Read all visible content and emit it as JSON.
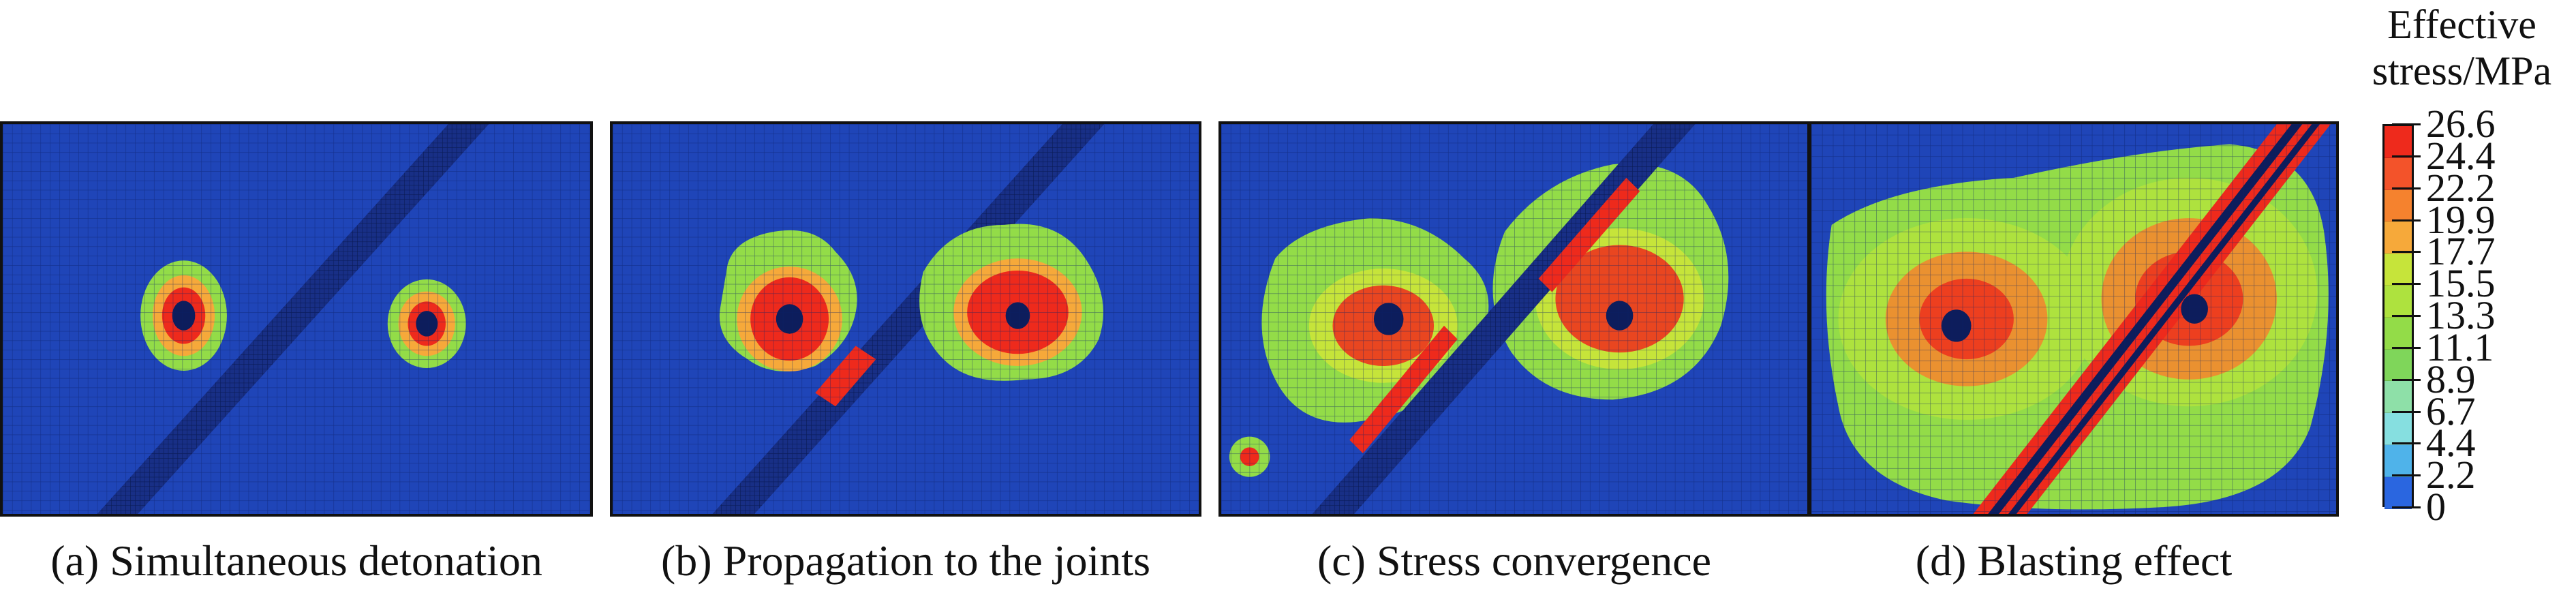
{
  "panels": [
    {
      "caption": "(a) Simultaneous detonation"
    },
    {
      "caption": "(b) Propagation to the joints"
    },
    {
      "caption": "(c) Stress convergence"
    },
    {
      "caption": "(d) Blasting effect"
    }
  ],
  "legend": {
    "title_line1": "Effective",
    "title_line2": "stress/MPa",
    "ticks": [
      "26.6",
      "24.4",
      "22.2",
      "19.9",
      "17.7",
      "15.5",
      "13.3",
      "11.1",
      "8.9",
      "6.7",
      "4.4",
      "2.2",
      "0"
    ],
    "colors": [
      "#ee2a1c",
      "#f3532a",
      "#f5822e",
      "#f6a93a",
      "#c6e43a",
      "#aee23e",
      "#93dc48",
      "#7fd65a",
      "#8ee0a8",
      "#86dfe0",
      "#4fb3ea",
      "#2a66e0"
    ]
  }
}
